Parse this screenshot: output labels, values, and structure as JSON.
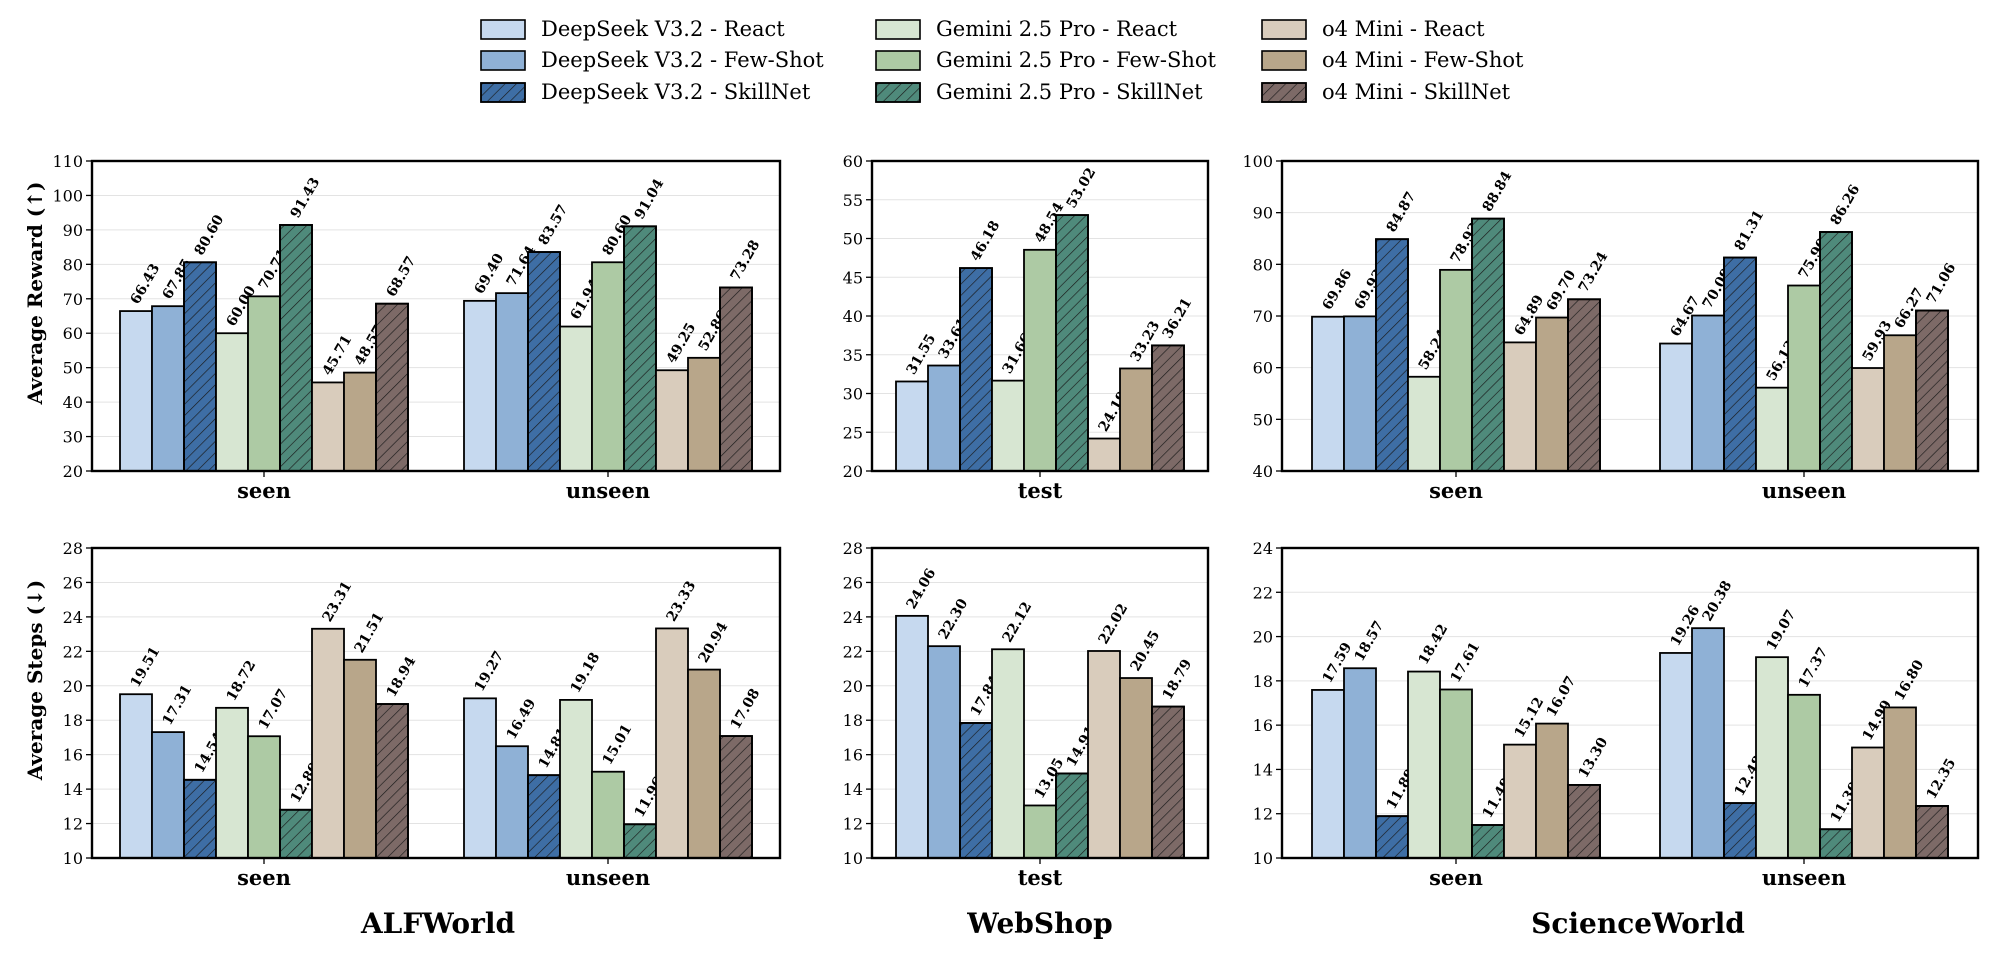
{
  "colors": {
    "ds_react": "#c6d9ef",
    "ds_few": "#8fb1d6",
    "ds_skill": "#3e6ea5",
    "gm_react": "#d7e6d2",
    "gm_few": "#adcaa4",
    "gm_skill": "#4f8a7b",
    "o4_react": "#d9ccbc",
    "o4_few": "#b8a68a",
    "o4_skill": "#7d6a67"
  },
  "legend": [
    {
      "label": "DeepSeek V3.2 - React",
      "color": "ds_react",
      "hatch": false
    },
    {
      "label": "DeepSeek V3.2 - Few-Shot",
      "color": "ds_few",
      "hatch": false
    },
    {
      "label": "DeepSeek V3.2 - SkillNet",
      "color": "ds_skill",
      "hatch": true
    },
    {
      "label": "Gemini 2.5 Pro - React",
      "color": "gm_react",
      "hatch": false
    },
    {
      "label": "Gemini 2.5 Pro - Few-Shot",
      "color": "gm_few",
      "hatch": false
    },
    {
      "label": "Gemini 2.5 Pro - SkillNet",
      "color": "gm_skill",
      "hatch": true
    },
    {
      "label": "o4 Mini - React",
      "color": "o4_react",
      "hatch": false
    },
    {
      "label": "o4 Mini - Few-Shot",
      "color": "o4_few",
      "hatch": false
    },
    {
      "label": "o4 Mini - SkillNet",
      "color": "o4_skill",
      "hatch": true
    }
  ],
  "titles": {
    "ylabel_top": "Average Reward (↑)",
    "ylabel_bottom": "Average Steps (↓)",
    "columns": [
      "ALFWorld",
      "WebShop",
      "ScienceWorld"
    ]
  },
  "chart_data": [
    {
      "id": "alf-reward",
      "type": "bar",
      "ylim": [
        20,
        110
      ],
      "yticks": [
        20,
        30,
        40,
        50,
        60,
        70,
        80,
        90,
        100,
        110
      ],
      "categories": [
        "seen",
        "unseen"
      ],
      "values": [
        [
          66.43,
          67.85,
          80.6,
          60.0,
          70.71,
          91.43,
          45.71,
          48.57,
          68.57
        ],
        [
          69.4,
          71.64,
          83.57,
          61.94,
          80.6,
          91.04,
          49.25,
          52.86,
          73.28
        ]
      ]
    },
    {
      "id": "web-reward",
      "type": "bar",
      "ylim": [
        20,
        60
      ],
      "yticks": [
        20,
        25,
        30,
        35,
        40,
        45,
        50,
        55,
        60
      ],
      "categories": [
        "test"
      ],
      "values": [
        [
          31.55,
          33.61,
          46.18,
          31.66,
          48.54,
          53.02,
          24.19,
          33.23,
          36.21
        ]
      ]
    },
    {
      "id": "sci-reward",
      "type": "bar",
      "ylim": [
        40,
        100
      ],
      "yticks": [
        40,
        50,
        60,
        70,
        80,
        90,
        100
      ],
      "categories": [
        "seen",
        "unseen"
      ],
      "values": [
        [
          69.86,
          69.93,
          84.87,
          58.24,
          78.93,
          88.84,
          64.89,
          69.7,
          73.24
        ],
        [
          64.67,
          70.09,
          81.31,
          56.13,
          75.9,
          86.26,
          59.93,
          66.27,
          71.06
        ]
      ]
    },
    {
      "id": "alf-steps",
      "type": "bar",
      "ylim": [
        10,
        28
      ],
      "yticks": [
        10,
        12,
        14,
        16,
        18,
        20,
        22,
        24,
        26,
        28
      ],
      "categories": [
        "seen",
        "unseen"
      ],
      "values": [
        [
          19.51,
          17.31,
          14.54,
          18.72,
          17.07,
          12.8,
          23.31,
          21.51,
          18.94
        ],
        [
          19.27,
          16.49,
          14.81,
          19.18,
          15.01,
          11.96,
          23.33,
          20.94,
          17.08
        ]
      ]
    },
    {
      "id": "web-steps",
      "type": "bar",
      "ylim": [
        10,
        28
      ],
      "yticks": [
        10,
        12,
        14,
        16,
        18,
        20,
        22,
        24,
        26,
        28
      ],
      "categories": [
        "test"
      ],
      "values": [
        [
          24.06,
          22.3,
          17.84,
          22.12,
          13.05,
          14.91,
          22.02,
          20.45,
          18.79
        ]
      ]
    },
    {
      "id": "sci-steps",
      "type": "bar",
      "ylim": [
        10,
        24
      ],
      "yticks": [
        10,
        12,
        14,
        16,
        18,
        20,
        22,
        24
      ],
      "categories": [
        "seen",
        "unseen"
      ],
      "values": [
        [
          17.59,
          18.57,
          11.89,
          18.42,
          17.61,
          11.49,
          15.12,
          16.07,
          13.3
        ],
        [
          19.26,
          20.38,
          12.48,
          19.07,
          17.37,
          11.3,
          14.99,
          16.8,
          12.35
        ]
      ]
    }
  ]
}
